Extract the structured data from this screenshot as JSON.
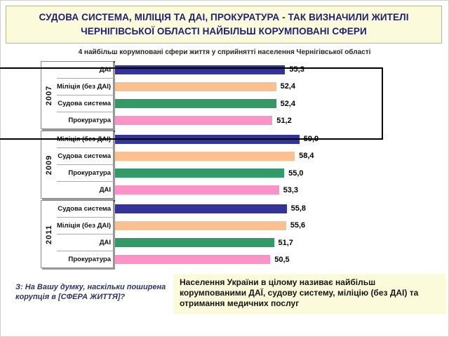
{
  "title": "СУДОВА СИСТЕМА, МІЛІЦІЯ ТА ДАІ,  ПРОКУРАТУРА - ТАК ВИЗНАЧИЛИ ЖИТЕЛІ ЧЕРНІГІВСЬКОЇ ОБЛАСТІ НАЙБІЛЬШ КОРУМПОВАНІ СФЕРИ",
  "chart_data": {
    "type": "bar",
    "orientation": "horizontal",
    "title": "4 найбільш корумповані сфери життя у сприйнятті населення Чернігівської області",
    "xlabel": "",
    "ylabel": "",
    "xlim": [
      0,
      100
    ],
    "axis_tick_labels_visible": false,
    "grid": false,
    "legend": false,
    "value_label_decimal_separator": ",",
    "bar_colors_by_position": [
      "#333399",
      "#FAC090",
      "#339966",
      "#FB93C6"
    ],
    "groups": [
      {
        "year": "2007",
        "highlighted": false,
        "items": [
          {
            "label": "ДАІ",
            "value": 55.3,
            "display": "55,3"
          },
          {
            "label": "Міліція (без ДАІ)",
            "value": 52.4,
            "display": "52,4"
          },
          {
            "label": "Судова система",
            "value": 52.4,
            "display": "52,4"
          },
          {
            "label": "Прокуратура",
            "value": 51.2,
            "display": "51,2"
          }
        ]
      },
      {
        "year": "2009",
        "highlighted": true,
        "items": [
          {
            "label": "Міліція (без ДАІ)",
            "value": 59.9,
            "display": "59,9"
          },
          {
            "label": "Судова система",
            "value": 58.4,
            "display": "58,4"
          },
          {
            "label": "Прокуратура",
            "value": 55.0,
            "display": "55,0"
          },
          {
            "label": "ДАІ",
            "value": 53.3,
            "display": "53,3"
          }
        ]
      },
      {
        "year": "2011",
        "highlighted": false,
        "items": [
          {
            "label": "Судова система",
            "value": 55.8,
            "display": "55,8"
          },
          {
            "label": "Міліція (без ДАІ)",
            "value": 55.6,
            "display": "55,6"
          },
          {
            "label": "ДАІ",
            "value": 51.7,
            "display": "51,7"
          },
          {
            "label": "Прокуратура",
            "value": 50.5,
            "display": "50,5"
          }
        ]
      }
    ]
  },
  "footnote_question": "З: На Вашу думку, наскільки поширена корупція в [СФЕРА ЖИТТЯ]?",
  "note_box": "Населення України в цілому називає найбільш корумпованими ДАЇ, судову систему, міліцію (без ДАІ) та отримання медичних послуг",
  "colors": {
    "title_box_bg": "#FBFBDB",
    "title_box_border": "#B6B68C",
    "title_text": "#1F1F70",
    "note_box_bg": "#FBFBDB",
    "question_text": "#30306B",
    "highlight_border": "#000000",
    "axis_line": "#3A3A3A"
  }
}
